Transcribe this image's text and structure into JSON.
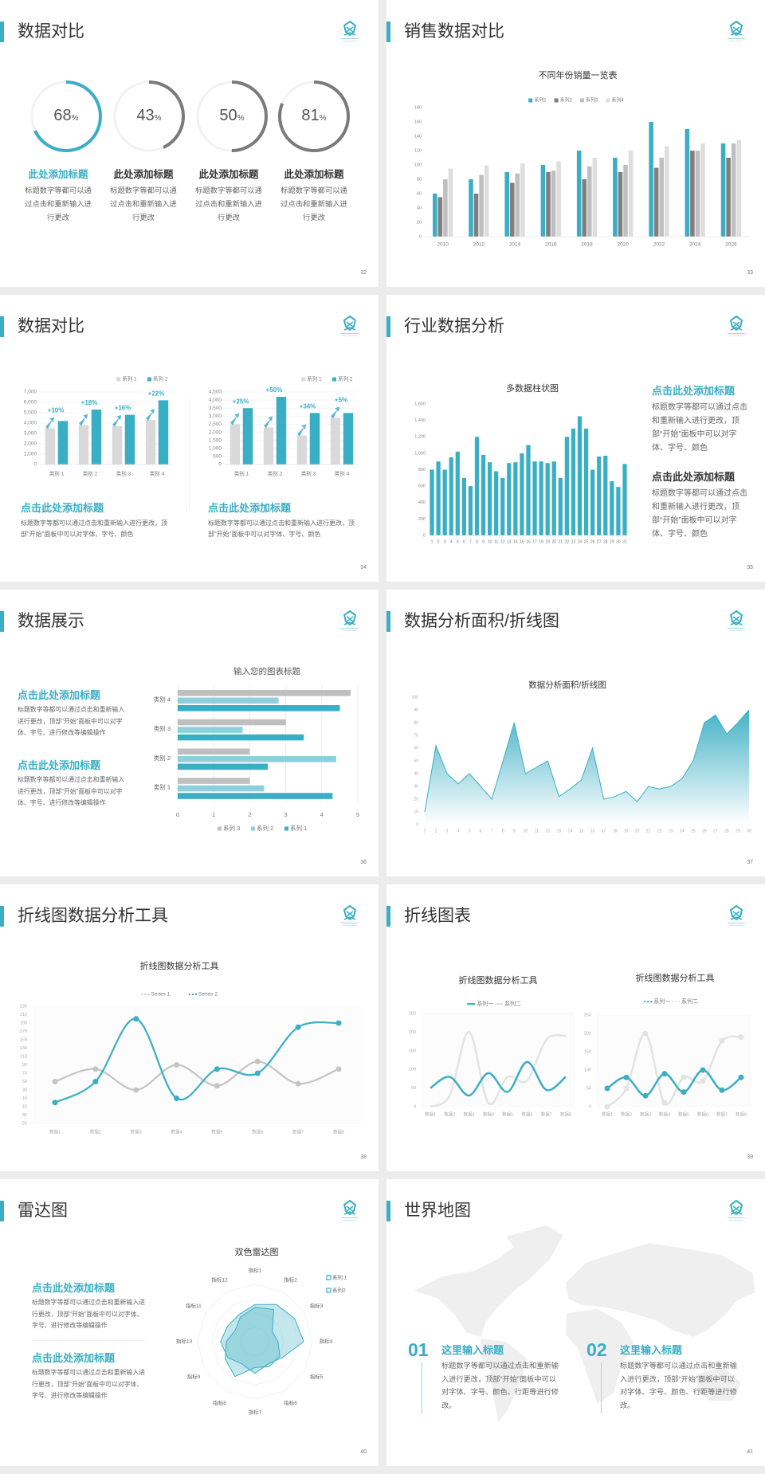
{
  "slides": [
    {
      "title": "数据对比",
      "page": "32"
    },
    {
      "title": "销售数据对比",
      "page": "33"
    },
    {
      "title": "数据对比",
      "page": "34"
    },
    {
      "title": "行业数据分析",
      "page": "35"
    },
    {
      "title": "数据展示",
      "page": "36"
    },
    {
      "title": "数据分析面积/折线图",
      "page": "37"
    },
    {
      "title": "折线图数据分析工具",
      "page": "38"
    },
    {
      "title": "折线图表",
      "page": "39"
    },
    {
      "title": "雷达图",
      "page": "40"
    },
    {
      "title": "世界地图",
      "page": "41"
    }
  ],
  "colors": {
    "accent": "#3aaec4",
    "ring_gray": "#7a7a7a",
    "ring_track": "#f2f2f2",
    "map": "#efefef"
  },
  "s32": {
    "items": [
      {
        "value": "68",
        "unit": "%",
        "pct": 68,
        "heading": "此处添加标题",
        "body": "标题数字等都可以通过点击和重新输入进行更改"
      },
      {
        "value": "43",
        "unit": "%",
        "pct": 43,
        "heading": "此处添加标题",
        "body": "标题数字等都可以通过点击和重新输入进行更改"
      },
      {
        "value": "50",
        "unit": "%",
        "pct": 50,
        "heading": "此处添加标题",
        "body": "标题数字等都可以通过点击和重新输入进行更改"
      },
      {
        "value": "81",
        "unit": "%",
        "pct": 81,
        "heading": "此处添加标题",
        "body": "标题数字等都可以通过点击和重新输入进行更改"
      }
    ]
  },
  "s34": {
    "blocks": [
      {
        "heading": "点击此处添加标题",
        "body": "标题数字等都可以通过点击和重新输入进行更改，顶部“开始”面板中可以对字体、字号、颜色"
      },
      {
        "heading": "点击此处添加标题",
        "body": "标题数字等都可以通过点击和重新输入进行更改，顶部“开始”面板中可以对字体、字号、颜色"
      }
    ]
  },
  "s35": {
    "blocks": [
      {
        "heading": "点击此处添加标题",
        "body": "标题数字等都可以通过点击和重新输入进行更改，顶部“开始”面板中可以对字体、字号、颜色"
      },
      {
        "heading": "点击此处添加标题",
        "body": "标题数字等都可以通过点击和重新输入进行更改，顶部“开始”面板中可以对字体、字号、颜色"
      }
    ]
  },
  "s36": {
    "blocks": [
      {
        "heading": "点击此处添加标题",
        "body": "标题数字等都可以通过点击和重新输入进行更改，顶部“开始”面板中可以对字体、字号、进行修改等编辑操作"
      },
      {
        "heading": "点击此处添加标题",
        "body": "标题数字等都可以通过点击和重新输入进行更改，顶部“开始”面板中可以对字体、字号、进行修改等编辑操作"
      }
    ]
  },
  "s40": {
    "blocks": [
      {
        "heading": "点击此处添加标题",
        "body": "标题数字等都可以通过点击和重新输入进行更改，顶部“开始”面板中可以对字体、字号、进行修改等编辑操作"
      },
      {
        "heading": "点击此处添加标题",
        "body": "标题数字等都可以通过点击和重新输入进行更改，顶部“开始”面板中可以对字体、字号、进行修改等编辑操作"
      }
    ]
  },
  "s41": {
    "items": [
      {
        "num": "01",
        "heading": "这里输入标题",
        "body": "标题数字等都可以通过点击和重新输入进行更改，顶部“开始”面板中可以对字体、字号、颜色、行距等进行修改。"
      },
      {
        "num": "02",
        "heading": "这里输入标题",
        "body": "标题数字等都可以通过点击和重新输入进行更改，顶部“开始”面板中可以对字体、字号、颜色、行距等进行修改。"
      }
    ]
  },
  "chart_data": [
    {
      "type": "bar",
      "title": "不同年份销量一览表",
      "categories": [
        "2010",
        "2012",
        "2014",
        "2016",
        "2018",
        "2020",
        "2022",
        "2024",
        "2026"
      ],
      "series": [
        {
          "name": "系列1",
          "color": "#3aaec4",
          "values": [
            60,
            80,
            90,
            100,
            120,
            110,
            160,
            150,
            130
          ]
        },
        {
          "name": "系列2",
          "color": "#7f7f7f",
          "values": [
            55,
            60,
            75,
            90,
            80,
            90,
            96,
            120,
            110
          ]
        },
        {
          "name": "系列3",
          "color": "#bfbfbf",
          "values": [
            80,
            86,
            88,
            92,
            98,
            100,
            110,
            120,
            130
          ]
        },
        {
          "name": "系列4",
          "color": "#dedede",
          "values": [
            95,
            99,
            102,
            105,
            110,
            120,
            126,
            130,
            135
          ]
        }
      ],
      "ylim": [
        0,
        180
      ],
      "yticks": [
        "0",
        "20",
        "40",
        "60",
        "80",
        "100",
        "120",
        "140",
        "160",
        "180"
      ],
      "legend": "top",
      "grid": false
    },
    {
      "type": "bar",
      "categories": [
        "类别 1",
        "类别 2",
        "类别 3",
        "类别 4"
      ],
      "series": [
        {
          "name": "系列 1",
          "color": "#d9d9d9",
          "values": [
            3500,
            3800,
            3700,
            4300
          ]
        },
        {
          "name": "系列 2",
          "color": "#3aaec4",
          "values": [
            4200,
            5300,
            4800,
            6200
          ]
        }
      ],
      "ylim": [
        0,
        7000
      ],
      "yticks": [
        "0",
        "1,000",
        "2,000",
        "3,000",
        "4,000",
        "5,000",
        "6,000",
        "7,000"
      ],
      "annotations": [
        "+10%",
        "+18%",
        "+16%",
        "+22%"
      ],
      "legend": "top-right",
      "grid": true
    },
    {
      "type": "bar",
      "categories": [
        "类别 1",
        "类别 2",
        "类别 3",
        "类别 4"
      ],
      "series": [
        {
          "name": "系列 1",
          "color": "#d9d9d9",
          "values": [
            2500,
            2300,
            1800,
            2900
          ]
        },
        {
          "name": "系列 2",
          "color": "#3aaec4",
          "values": [
            3500,
            4200,
            3200,
            3200
          ]
        }
      ],
      "ylim": [
        0,
        4500
      ],
      "yticks": [
        "0",
        "500",
        "1,000",
        "1,500",
        "2,000",
        "2,500",
        "3,000",
        "3,500",
        "4,000",
        "4,500"
      ],
      "annotations": [
        "+25%",
        "+50%",
        "+34%",
        "+5%"
      ],
      "legend": "top-right",
      "grid": true
    },
    {
      "type": "bar",
      "title": "多数据柱状图",
      "categories": [
        "1",
        "2",
        "3",
        "4",
        "5",
        "6",
        "7",
        "8",
        "9",
        "10",
        "11",
        "12",
        "13",
        "14",
        "15",
        "16",
        "17",
        "18",
        "19",
        "20",
        "21",
        "22",
        "23",
        "24",
        "25",
        "26",
        "27",
        "28",
        "29",
        "30",
        "31"
      ],
      "series": [
        {
          "color": "#3aaec4",
          "values": [
            800,
            900,
            800,
            950,
            1020,
            700,
            600,
            1200,
            980,
            890,
            780,
            700,
            880,
            890,
            1000,
            1100,
            900,
            900,
            880,
            900,
            700,
            1200,
            1300,
            1450,
            1300,
            800,
            960,
            970,
            660,
            590,
            870
          ]
        }
      ],
      "ylim": [
        0,
        1600
      ],
      "yticks": [
        "0",
        "200",
        "400",
        "600",
        "800",
        "1,000",
        "1,200",
        "1,400",
        "1,600"
      ],
      "grid": false
    },
    {
      "type": "bar-horizontal",
      "title": "输入您的图表标题",
      "categories": [
        "类别 1",
        "类别 2",
        "类别 3",
        "类别 4"
      ],
      "series": [
        {
          "name": "系列 3",
          "color": "#bfbfbf",
          "values": [
            2,
            2,
            3,
            4.8
          ]
        },
        {
          "name": "系列 2",
          "color": "#8dd0dc",
          "values": [
            2.4,
            4.4,
            1.8,
            2.8
          ]
        },
        {
          "name": "系列 1",
          "color": "#3aaec4",
          "values": [
            4.3,
            2.5,
            3.5,
            4.5
          ]
        }
      ],
      "xlim": [
        0,
        5
      ],
      "xticks": [
        "0",
        "1",
        "2",
        "3",
        "4",
        "5"
      ],
      "legend": "bottom",
      "grid": true
    },
    {
      "type": "area",
      "title": "数据分析面积/折线图",
      "categories": [
        "1",
        "2",
        "3",
        "4",
        "5",
        "6",
        "7",
        "8",
        "9",
        "10",
        "11",
        "12",
        "13",
        "14",
        "15",
        "16",
        "17",
        "18",
        "19",
        "20",
        "21",
        "22",
        "23",
        "24",
        "25",
        "26",
        "27",
        "28",
        "29",
        "30"
      ],
      "values": [
        10,
        62,
        40,
        32,
        40,
        30,
        20,
        50,
        80,
        40,
        45,
        50,
        22,
        28,
        35,
        60,
        20,
        22,
        26,
        18,
        30,
        28,
        30,
        36,
        50,
        80,
        86,
        71,
        80,
        90
      ],
      "color": "#3aaec4",
      "ylim": [
        0,
        100
      ],
      "yticks": [
        "0",
        "10",
        "20",
        "30",
        "40",
        "50",
        "60",
        "70",
        "80",
        "90",
        "100"
      ]
    },
    {
      "type": "line",
      "title": "折线图数据分析工具",
      "categories": [
        "数据1",
        "数据2",
        "数据3",
        "数据4",
        "数据5",
        "数据6",
        "数据7",
        "数据8"
      ],
      "series": [
        {
          "name": "Series 1",
          "color": "#c4c4c4",
          "values": [
            50,
            80,
            30,
            90,
            40,
            98,
            45,
            80
          ]
        },
        {
          "name": "Series 2",
          "color": "#3aaec4",
          "values": [
            0,
            50,
            200,
            10,
            80,
            70,
            180,
            190
          ]
        }
      ],
      "ylim": [
        -50,
        230
      ],
      "yticks": [
        "-50",
        "-30",
        "-10",
        "10",
        "30",
        "50",
        "70",
        "90",
        "110",
        "130",
        "150",
        "170",
        "190",
        "210",
        "230"
      ],
      "smooth": true,
      "markers": true,
      "legend": "top"
    },
    {
      "type": "line",
      "title": "折线图数据分析工具",
      "categories": [
        "数据1",
        "数据2",
        "数据3",
        "数据4",
        "数据5",
        "数据6",
        "数据7",
        "数据8"
      ],
      "series": [
        {
          "name": "系列一",
          "color": "#3aaec4",
          "values": [
            50,
            80,
            30,
            90,
            40,
            120,
            45,
            80
          ]
        },
        {
          "name": "系列二",
          "color": "#e3e3e3",
          "values": [
            0,
            30,
            200,
            10,
            80,
            70,
            180,
            190
          ]
        }
      ],
      "ylim": [
        0,
        250
      ],
      "yticks": [
        "0",
        "50",
        "100",
        "150",
        "200",
        "250"
      ],
      "smooth": true,
      "markers": false,
      "legend": "top"
    },
    {
      "type": "line",
      "title": "折线图数据分析工具",
      "categories": [
        "数据1",
        "数据2",
        "数据3",
        "数据4",
        "数据5",
        "数据6",
        "数据7",
        "数据8"
      ],
      "series": [
        {
          "name": "系列一",
          "color": "#3aaec4",
          "values": [
            50,
            80,
            30,
            90,
            40,
            100,
            45,
            80
          ]
        },
        {
          "name": "系列二",
          "color": "#e3e3e3",
          "values": [
            0,
            50,
            200,
            10,
            80,
            70,
            180,
            190
          ]
        }
      ],
      "ylim": [
        0,
        250
      ],
      "yticks": [
        "0",
        "50",
        "100",
        "150",
        "200",
        "250"
      ],
      "smooth": true,
      "markers": true,
      "legend": "top"
    },
    {
      "type": "radar",
      "title": "双色雷达图",
      "categories": [
        "指标1",
        "指标2",
        "指标3",
        "指标4",
        "指标5",
        "指标6",
        "指标7",
        "指标8",
        "指标9",
        "指标10",
        "指标11",
        "指标12"
      ],
      "series": [
        {
          "name": "系列 1",
          "color": "#3aaec4",
          "values": [
            65,
            75,
            80,
            85,
            55,
            45,
            55,
            45,
            55,
            60,
            55,
            55
          ]
        },
        {
          "name": "系列2",
          "color": "#3aaec4",
          "values": [
            60,
            65,
            35,
            40,
            50,
            50,
            45,
            70,
            60,
            50,
            40,
            50
          ]
        }
      ],
      "rlim": [
        0,
        100
      ],
      "legend": "top-right"
    }
  ]
}
